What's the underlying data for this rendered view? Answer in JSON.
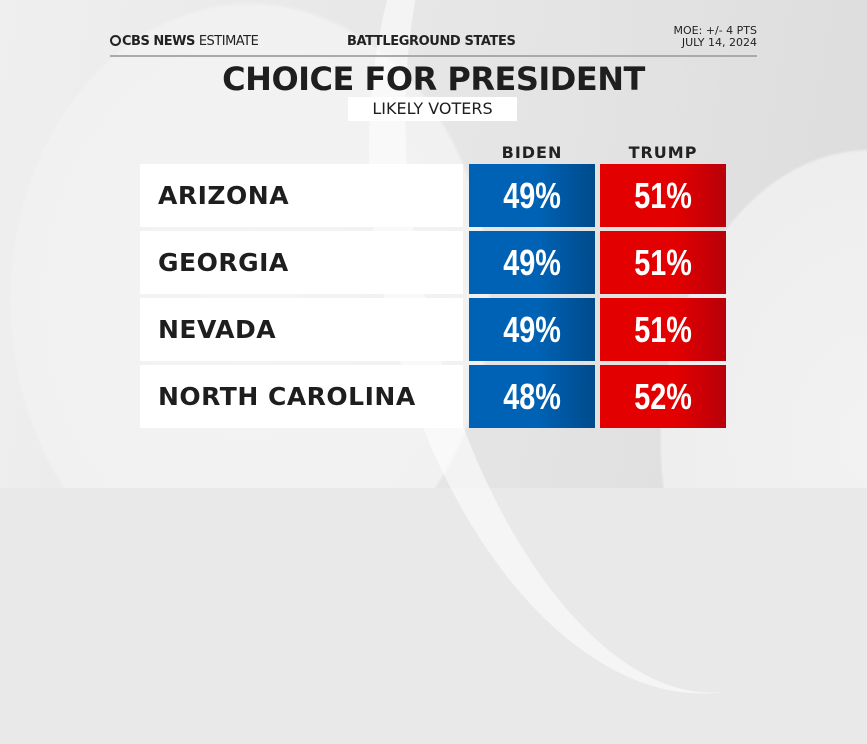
{
  "header": {
    "brand": "CBS NEWS",
    "brand_suffix": "ESTIMATE",
    "section": "BATTLEGROUND STATES",
    "moe": "MOE: +/- 4 PTS",
    "date": "JULY 14, 2024"
  },
  "title": "CHOICE FOR PRESIDENT",
  "subtitle": "LIKELY VOTERS",
  "chart_data": {
    "type": "table",
    "title": "CHOICE FOR PRESIDENT",
    "subtitle": "LIKELY VOTERS",
    "columns": [
      "BIDEN",
      "TRUMP"
    ],
    "colors": {
      "BIDEN": "#0062b4",
      "TRUMP": "#e20000"
    },
    "rows": [
      {
        "state": "ARIZONA",
        "biden": "49%",
        "trump": "51%"
      },
      {
        "state": "GEORGIA",
        "biden": "49%",
        "trump": "51%"
      },
      {
        "state": "NEVADA",
        "biden": "49%",
        "trump": "51%"
      },
      {
        "state": "NORTH CAROLINA",
        "biden": "48%",
        "trump": "52%"
      }
    ]
  }
}
